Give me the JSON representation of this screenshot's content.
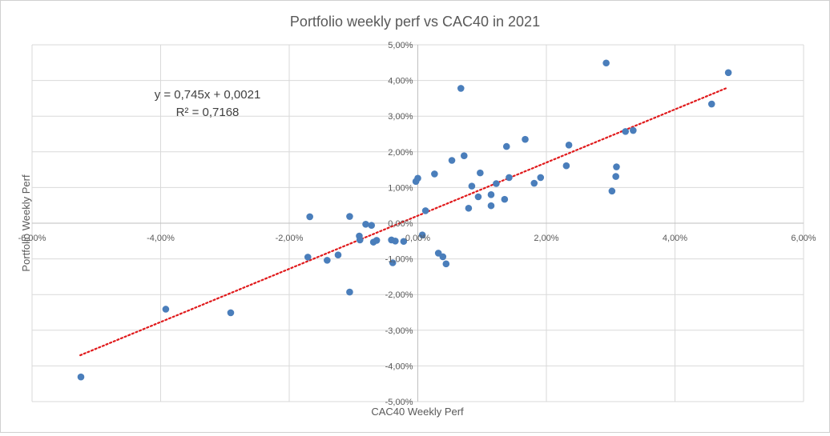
{
  "chart_data": {
    "type": "scatter",
    "title": "Portfolio weekly perf vs CAC40 in 2021",
    "xlabel": "CAC40 Weekly Perf",
    "ylabel": "Portfolio Weekly Perf",
    "xlim": [
      -0.06,
      0.06
    ],
    "ylim": [
      -0.05,
      0.05
    ],
    "x_ticks": [
      -0.06,
      -0.04,
      -0.02,
      0,
      0.02,
      0.04,
      0.06
    ],
    "x_tick_labels": [
      "-6,00%",
      "-4,00%",
      "-2,00%",
      "0,00%",
      "2,00%",
      "4,00%",
      "6,00%"
    ],
    "y_ticks": [
      -0.05,
      -0.04,
      -0.03,
      -0.02,
      -0.01,
      0,
      0.01,
      0.02,
      0.03,
      0.04,
      0.05
    ],
    "y_tick_labels": [
      "-5,00%",
      "-4,00%",
      "-3,00%",
      "-2,00%",
      "-1,00%",
      "0,00%",
      "1,00%",
      "2,00%",
      "3,00%",
      "4,00%",
      "5,00%"
    ],
    "grid": true,
    "point_color": "#4a7ebb",
    "trendline_color": "#e0191b",
    "trendline": {
      "slope": 0.745,
      "intercept": 0.0021,
      "x_range": [
        -0.0525,
        0.048
      ],
      "equation_label": "y = 0,745x + 0,0021",
      "r2_label": "R² = 0,7168"
    },
    "points": [
      [
        -0.0524,
        -0.0431
      ],
      [
        -0.0392,
        -0.0241
      ],
      [
        -0.0291,
        -0.0251
      ],
      [
        -0.0168,
        0.0018
      ],
      [
        -0.0171,
        -0.0095
      ],
      [
        -0.0141,
        -0.0104
      ],
      [
        -0.0124,
        -0.0089
      ],
      [
        -0.0106,
        0.0019
      ],
      [
        -0.0106,
        -0.0193
      ],
      [
        -0.0091,
        -0.0036
      ],
      [
        -0.009,
        -0.0047
      ],
      [
        -0.0081,
        -0.0003
      ],
      [
        -0.0072,
        -0.0006
      ],
      [
        -0.0069,
        -0.0053
      ],
      [
        -0.0064,
        -0.0048
      ],
      [
        -0.0041,
        -0.0047
      ],
      [
        -0.0039,
        -0.0111
      ],
      [
        -0.0022,
        -0.0051
      ],
      [
        -0.0035,
        -0.005
      ],
      [
        -0.0003,
        0.0117
      ],
      [
        0.0,
        0.0126
      ],
      [
        0.0007,
        -0.0033
      ],
      [
        0.0012,
        0.0035
      ],
      [
        0.0026,
        0.0138
      ],
      [
        0.0032,
        -0.0084
      ],
      [
        0.0039,
        -0.0094
      ],
      [
        0.0044,
        -0.0114
      ],
      [
        0.0053,
        0.0176
      ],
      [
        0.0067,
        0.0378
      ],
      [
        0.0072,
        0.0189
      ],
      [
        0.0079,
        0.0042
      ],
      [
        0.0084,
        0.0104
      ],
      [
        0.0094,
        0.0074
      ],
      [
        0.0097,
        0.0141
      ],
      [
        0.0114,
        0.0049
      ],
      [
        0.0114,
        0.008
      ],
      [
        0.0122,
        0.0111
      ],
      [
        0.0135,
        0.0067
      ],
      [
        0.0138,
        0.0215
      ],
      [
        0.0142,
        0.0128
      ],
      [
        0.0167,
        0.0235
      ],
      [
        0.0181,
        0.0112
      ],
      [
        0.0191,
        0.0128
      ],
      [
        0.0231,
        0.0161
      ],
      [
        0.0235,
        0.0219
      ],
      [
        0.0293,
        0.0449
      ],
      [
        0.0302,
        0.009
      ],
      [
        0.0308,
        0.0131
      ],
      [
        0.0309,
        0.0158
      ],
      [
        0.0323,
        0.0257
      ],
      [
        0.0335,
        0.026
      ],
      [
        0.0457,
        0.0334
      ],
      [
        0.0483,
        0.0422
      ]
    ]
  }
}
